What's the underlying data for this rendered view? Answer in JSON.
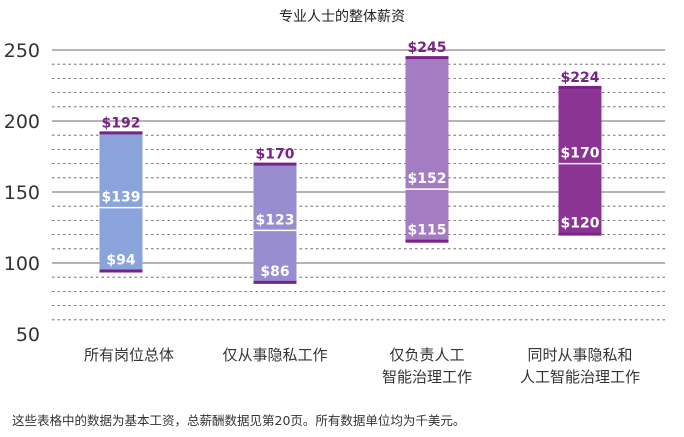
{
  "chart_data": {
    "type": "bar",
    "subtype": "floating-range",
    "title": "专业人士的整体薪资",
    "categories": [
      "所有岗位总体",
      "仅从事隐私工作",
      "仅负责人工\n智能治理工作",
      "同时从事隐私和\n人工智能治理工作"
    ],
    "series": [
      {
        "low": 94,
        "median": 139,
        "high": 192
      },
      {
        "low": 86,
        "median": 123,
        "high": 170
      },
      {
        "low": 115,
        "median": 152,
        "high": 245
      },
      {
        "low": 120,
        "median": 170,
        "high": 224
      }
    ],
    "label_prefix": "$",
    "ylim": [
      50,
      250
    ],
    "yticks": [
      50,
      100,
      150,
      200,
      250
    ],
    "minor_grid_step": 10,
    "grid": true,
    "colors": [
      "#8aa3da",
      "#988ecf",
      "#a47cc2",
      "#8c3494"
    ],
    "edge_color": "#7a2387",
    "label_color": "#7a2387"
  },
  "footnote": "这些表格中的数据为基本工资，总薪酬数据见第20页。所有数据单位均为千美元。"
}
